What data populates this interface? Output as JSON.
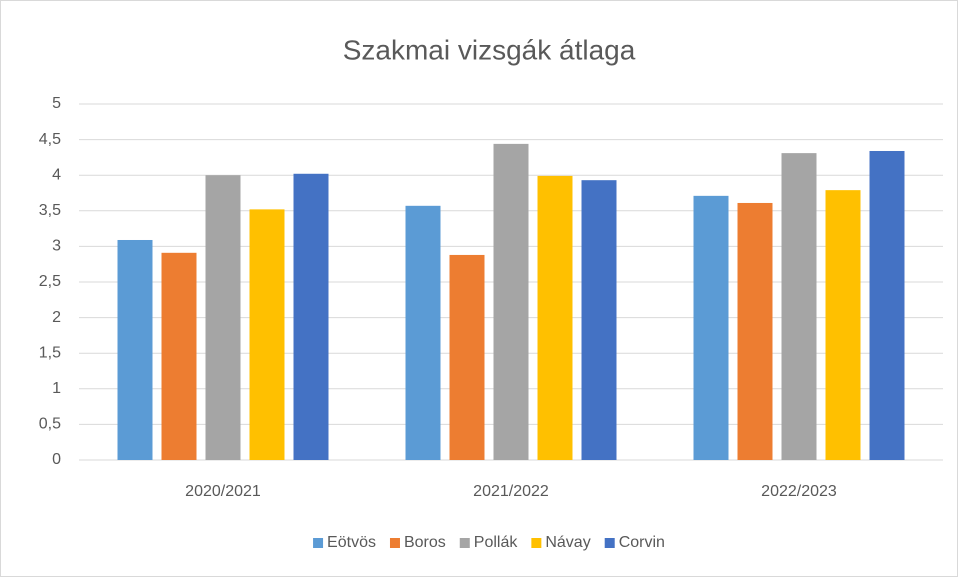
{
  "chart_data": {
    "type": "bar",
    "title": "Szakmai vizsgák átlaga",
    "categories": [
      "2020/2021",
      "2021/2022",
      "2022/2023"
    ],
    "series": [
      {
        "name": "Eötvös",
        "color": "#5b9bd5",
        "values": [
          3.09,
          3.57,
          3.71
        ]
      },
      {
        "name": "Boros",
        "color": "#ed7d31",
        "values": [
          2.91,
          2.88,
          3.61
        ]
      },
      {
        "name": "Pollák",
        "color": "#a5a5a5",
        "values": [
          4.0,
          4.44,
          4.31
        ]
      },
      {
        "name": "Návay",
        "color": "#ffc000",
        "values": [
          3.52,
          3.99,
          3.79
        ]
      },
      {
        "name": "Corvin",
        "color": "#4472c4",
        "values": [
          4.02,
          3.93,
          4.34
        ]
      }
    ],
    "ylim": [
      0,
      5
    ],
    "yticks": [
      0,
      {
        "value": 0.5,
        "label": "0,5"
      },
      1,
      {
        "value": 1.5,
        "label": "1,5"
      },
      2,
      {
        "value": 2.5,
        "label": "2,5"
      },
      3,
      {
        "value": 3.5,
        "label": "3,5"
      },
      4,
      {
        "value": 4.5,
        "label": "4,5"
      },
      5
    ],
    "grid": true,
    "legend": "bottom"
  }
}
